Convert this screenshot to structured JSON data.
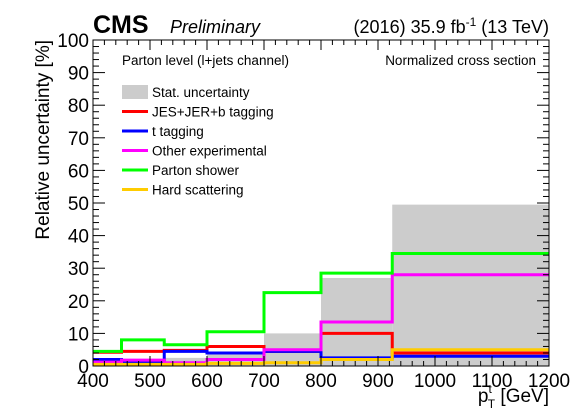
{
  "header": {
    "experiment": "CMS",
    "status": "Preliminary",
    "lumi_prefix": "(2016) 35.9 fb",
    "lumi_sup": "-1",
    "lumi_suffix": " (13 TeV)"
  },
  "annotations": {
    "left": "Parton level (l+jets channel)",
    "right": "Normalized cross section"
  },
  "chart_data": {
    "type": "histogram-step",
    "xlabel": {
      "main": "p",
      "sup": "t",
      "sub": "T",
      "unit": " [GeV]"
    },
    "ylabel": "Relative uncertainty [%]",
    "xlim": [
      400,
      1200
    ],
    "ylim": [
      0,
      100
    ],
    "x_ticks": [
      400,
      500,
      600,
      700,
      800,
      900,
      1000,
      1100,
      1200
    ],
    "y_ticks": [
      0,
      10,
      20,
      30,
      40,
      50,
      60,
      70,
      80,
      90,
      100
    ],
    "bin_edges": [
      400,
      450,
      525,
      600,
      700,
      800,
      925,
      1200
    ],
    "band": {
      "name": "Stat. uncertainty",
      "color": "#cccccc",
      "values": [
        1.5,
        2.0,
        2.5,
        3.5,
        10.0,
        27.0,
        49.5
      ]
    },
    "series": [
      {
        "name": "JES+JER+b tagging",
        "color": "#ff0000",
        "values": [
          4.2,
          4.5,
          4.8,
          6.0,
          4.5,
          10.0,
          4.0
        ]
      },
      {
        "name": "t tagging",
        "color": "#0000ff",
        "values": [
          2.0,
          1.2,
          4.5,
          4.0,
          4.5,
          2.5,
          3.0
        ]
      },
      {
        "name": "Other experimental",
        "color": "#ff00ff",
        "values": [
          1.2,
          1.8,
          1.0,
          2.0,
          5.0,
          13.5,
          28.0
        ]
      },
      {
        "name": "Parton shower",
        "color": "#00ff00",
        "values": [
          4.5,
          8.0,
          6.5,
          10.5,
          22.5,
          28.5,
          34.5
        ]
      },
      {
        "name": "Hard scattering",
        "color": "#ffcc00",
        "values": [
          0.5,
          0.5,
          0.5,
          0.8,
          1.0,
          2.0,
          5.0
        ]
      }
    ],
    "legend_position": "top-left"
  }
}
